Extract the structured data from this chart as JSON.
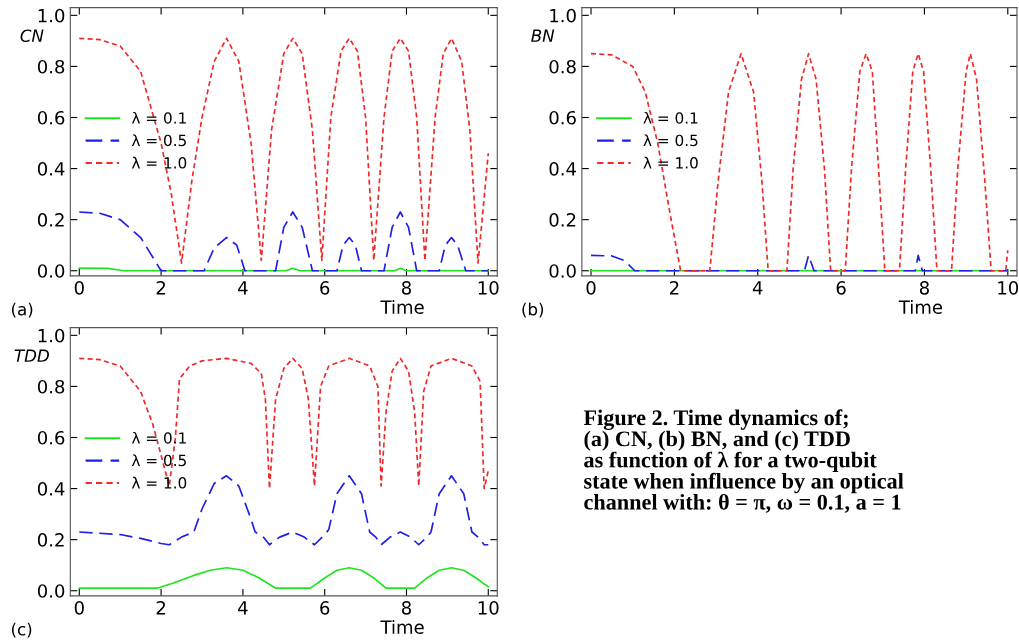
{
  "chart_data": [
    {
      "type": "line",
      "ylabel": "CN",
      "xlabel": "Time",
      "annotations": [
        "(a)"
      ],
      "xlim": [
        -0.22,
        10.22
      ],
      "ylim": [
        -0.02,
        1.03
      ],
      "xticks": [
        0,
        2,
        4,
        6,
        8,
        10
      ],
      "yticks": [
        {
          "value": 0,
          "label": "0.0"
        },
        {
          "value": 0.2,
          "label": "0.2"
        },
        {
          "value": 0.4,
          "label": "0.4"
        },
        {
          "value": 0.6,
          "label": "0.6"
        },
        {
          "value": 0.8,
          "label": "0.8"
        },
        {
          "value": 1.0,
          "label": "1.0"
        }
      ],
      "grid": false,
      "legend": "left",
      "series": [
        {
          "name": "λ = 0.1",
          "color": "#1ee61e",
          "line_style": "solid",
          "x": [
            0,
            0.7,
            1.0,
            1.1,
            5.05,
            5.22,
            5.4,
            7.7,
            7.85,
            8.0,
            10
          ],
          "values": [
            0.01,
            0.009,
            0.002,
            0.0,
            0.0,
            0.01,
            0.0,
            0.0,
            0.01,
            0.0,
            0.0
          ]
        },
        {
          "name": "λ = 0.5",
          "color": "#1e1ee6",
          "line_style": "dashed",
          "x": [
            0,
            0.5,
            1,
            1.5,
            2.0,
            3.05,
            3.3,
            3.6,
            3.85,
            4.05,
            4.8,
            5.0,
            5.22,
            5.45,
            5.7,
            6.3,
            6.45,
            6.6,
            6.75,
            6.9,
            7.45,
            7.65,
            7.85,
            8.05,
            8.25,
            8.8,
            8.95,
            9.1,
            9.25,
            9.45,
            10
          ],
          "values": [
            0.23,
            0.225,
            0.2,
            0.13,
            0.0,
            0.0,
            0.09,
            0.13,
            0.1,
            0.0,
            0.0,
            0.17,
            0.23,
            0.17,
            0.0,
            0.0,
            0.1,
            0.13,
            0.1,
            0.0,
            0.0,
            0.17,
            0.23,
            0.17,
            0.0,
            0.0,
            0.1,
            0.13,
            0.1,
            0.0,
            0.0
          ]
        },
        {
          "name": "λ = 1.0",
          "color": "#f02828",
          "line_style": "dotted",
          "x": [
            0,
            0.5,
            1.0,
            1.5,
            2.0,
            2.25,
            2.5,
            2.75,
            3.0,
            3.3,
            3.6,
            3.9,
            4.2,
            4.45,
            4.7,
            5.0,
            5.22,
            5.45,
            5.7,
            5.93,
            6.15,
            6.4,
            6.6,
            6.8,
            7.0,
            7.2,
            7.45,
            7.65,
            7.85,
            8.05,
            8.25,
            8.45,
            8.7,
            8.9,
            9.1,
            9.35,
            9.55,
            9.75,
            10
          ],
          "values": [
            0.91,
            0.905,
            0.88,
            0.78,
            0.5,
            0.3,
            0.03,
            0.35,
            0.6,
            0.82,
            0.91,
            0.82,
            0.5,
            0.04,
            0.55,
            0.85,
            0.91,
            0.85,
            0.55,
            0.04,
            0.6,
            0.86,
            0.91,
            0.86,
            0.6,
            0.04,
            0.6,
            0.86,
            0.91,
            0.86,
            0.6,
            0.04,
            0.6,
            0.85,
            0.91,
            0.82,
            0.55,
            0.03,
            0.46
          ]
        }
      ]
    },
    {
      "type": "line",
      "ylabel": "BN",
      "xlabel": "Time",
      "annotations": [
        "(b)"
      ],
      "xlim": [
        -0.22,
        10.22
      ],
      "ylim": [
        -0.02,
        1.03
      ],
      "xticks": [
        0,
        2,
        4,
        6,
        8,
        10
      ],
      "yticks": [
        {
          "value": 0,
          "label": "0.0"
        },
        {
          "value": 0.2,
          "label": "0.2"
        },
        {
          "value": 0.4,
          "label": "0.4"
        },
        {
          "value": 0.6,
          "label": "0.6"
        },
        {
          "value": 0.8,
          "label": "0.8"
        },
        {
          "value": 1.0,
          "label": "1.0"
        }
      ],
      "grid": false,
      "legend": "left",
      "series": [
        {
          "name": "λ = 0.1",
          "color": "#1ee61e",
          "line_style": "solid",
          "x": [
            0,
            10
          ],
          "values": [
            0.0,
            0.0
          ]
        },
        {
          "name": "λ = 0.5",
          "color": "#1e1ee6",
          "line_style": "dashed",
          "x": [
            0,
            0.5,
            0.8,
            1.05,
            5.12,
            5.22,
            5.35,
            7.78,
            7.85,
            7.95,
            10
          ],
          "values": [
            0.06,
            0.058,
            0.04,
            0.0,
            0.0,
            0.06,
            0.0,
            0.0,
            0.06,
            0.0,
            0.0
          ]
        },
        {
          "name": "λ = 1.0",
          "color": "#f02828",
          "line_style": "dotted",
          "x": [
            0,
            0.5,
            1,
            1.3,
            1.6,
            1.9,
            2.15,
            2.85,
            3.05,
            3.3,
            3.6,
            3.9,
            4.1,
            4.25,
            4.7,
            4.85,
            5.05,
            5.22,
            5.4,
            5.6,
            5.75,
            6.1,
            6.25,
            6.45,
            6.6,
            6.75,
            6.9,
            7.05,
            7.4,
            7.55,
            7.72,
            7.85,
            7.98,
            8.15,
            8.3,
            8.65,
            8.8,
            9.0,
            9.1,
            9.25,
            9.45,
            9.6,
            9.95,
            10
          ],
          "values": [
            0.85,
            0.845,
            0.8,
            0.7,
            0.5,
            0.22,
            0.0,
            0.0,
            0.35,
            0.7,
            0.85,
            0.7,
            0.35,
            0.0,
            0.0,
            0.4,
            0.75,
            0.85,
            0.75,
            0.4,
            0.0,
            0.0,
            0.4,
            0.78,
            0.85,
            0.78,
            0.4,
            0.0,
            0.0,
            0.4,
            0.78,
            0.85,
            0.78,
            0.4,
            0.0,
            0.0,
            0.4,
            0.78,
            0.85,
            0.75,
            0.35,
            0.0,
            0.0,
            0.08
          ]
        }
      ]
    },
    {
      "type": "line",
      "ylabel": "TDD",
      "xlabel": "Time",
      "annotations": [
        "(c)"
      ],
      "xlim": [
        -0.22,
        10.22
      ],
      "ylim": [
        -0.02,
        1.03
      ],
      "xticks": [
        0,
        2,
        4,
        6,
        8,
        10
      ],
      "yticks": [
        {
          "value": 0,
          "label": "0.0"
        },
        {
          "value": 0.2,
          "label": "0.2"
        },
        {
          "value": 0.4,
          "label": "0.4"
        },
        {
          "value": 0.6,
          "label": "0.6"
        },
        {
          "value": 0.8,
          "label": "0.8"
        },
        {
          "value": 1.0,
          "label": "1.0"
        }
      ],
      "grid": false,
      "legend": "left",
      "series": [
        {
          "name": "λ = 0.1",
          "color": "#1ee61e",
          "line_style": "solid",
          "x": [
            0,
            1.9,
            2.3,
            2.8,
            3.2,
            3.6,
            4.0,
            4.4,
            4.8,
            5.65,
            6.0,
            6.3,
            6.6,
            6.9,
            7.2,
            7.5,
            8.2,
            8.5,
            8.8,
            9.1,
            9.4,
            9.7,
            10
          ],
          "values": [
            0.01,
            0.01,
            0.03,
            0.06,
            0.08,
            0.09,
            0.08,
            0.05,
            0.01,
            0.01,
            0.05,
            0.08,
            0.09,
            0.08,
            0.05,
            0.01,
            0.01,
            0.05,
            0.08,
            0.09,
            0.08,
            0.05,
            0.015
          ]
        },
        {
          "name": "λ = 0.5",
          "color": "#1e1ee6",
          "line_style": "dashed",
          "x": [
            0,
            1,
            1.5,
            2.0,
            2.2,
            2.5,
            2.8,
            3.0,
            3.3,
            3.6,
            3.9,
            4.2,
            4.3,
            4.5,
            4.65,
            4.9,
            5.22,
            5.5,
            5.75,
            6.0,
            6.1,
            6.3,
            6.6,
            6.9,
            7.1,
            7.25,
            7.38,
            7.6,
            7.85,
            8.1,
            8.3,
            8.5,
            8.6,
            8.8,
            9.1,
            9.4,
            9.6,
            9.75,
            9.9,
            10
          ],
          "values": [
            0.23,
            0.22,
            0.205,
            0.185,
            0.18,
            0.21,
            0.23,
            0.32,
            0.42,
            0.45,
            0.41,
            0.28,
            0.23,
            0.21,
            0.18,
            0.21,
            0.23,
            0.21,
            0.18,
            0.22,
            0.24,
            0.38,
            0.45,
            0.38,
            0.23,
            0.21,
            0.18,
            0.21,
            0.23,
            0.21,
            0.18,
            0.21,
            0.23,
            0.38,
            0.45,
            0.38,
            0.23,
            0.21,
            0.18,
            0.18
          ]
        },
        {
          "name": "λ = 1.0",
          "color": "#f02828",
          "line_style": "dotted",
          "x": [
            0,
            0.5,
            1.0,
            1.5,
            1.8,
            2.05,
            2.2,
            2.35,
            2.45,
            2.7,
            3.0,
            3.6,
            4.2,
            4.45,
            4.55,
            4.65,
            4.8,
            5.0,
            5.22,
            5.45,
            5.6,
            5.75,
            5.9,
            6.1,
            6.6,
            7.1,
            7.3,
            7.38,
            7.5,
            7.65,
            7.85,
            8.05,
            8.2,
            8.3,
            8.42,
            8.6,
            9.1,
            9.6,
            9.8,
            9.9,
            10
          ],
          "values": [
            0.91,
            0.905,
            0.88,
            0.78,
            0.65,
            0.5,
            0.41,
            0.6,
            0.83,
            0.88,
            0.9,
            0.91,
            0.89,
            0.85,
            0.75,
            0.4,
            0.75,
            0.87,
            0.91,
            0.87,
            0.75,
            0.41,
            0.8,
            0.88,
            0.91,
            0.88,
            0.8,
            0.41,
            0.7,
            0.86,
            0.91,
            0.86,
            0.7,
            0.41,
            0.78,
            0.88,
            0.91,
            0.88,
            0.82,
            0.4,
            0.47
          ]
        }
      ]
    },
    {
      "type": "other",
      "annotations": [
        "Figure 2. Time dynamics of;\n(a) CN, (b) BN, and (c) TDD\nas function of λ for a two-qubit\nstate when influence by an optical\nchannel with: θ = π, ω = 0.1, a = 1"
      ]
    }
  ]
}
